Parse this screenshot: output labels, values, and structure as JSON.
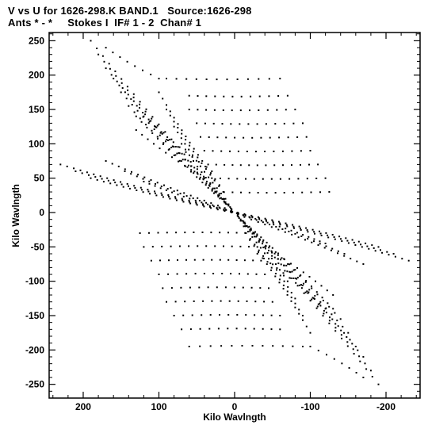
{
  "header": {
    "line1": "V vs U for 1626-298.K BAND.1   Source:1626-298",
    "line2": "Ants * - *     Stokes I  IF# 1 - 2  Chan# 1"
  },
  "chart_data": {
    "type": "scatter",
    "title": "V vs U for 1626-298.K BAND.1   Source:1626-298",
    "subtitle": "Ants * - *     Stokes I  IF# 1 - 2  Chan# 1",
    "xlabel": "Kilo Wavlngth",
    "ylabel": "Kilo Wavlngth",
    "xlim": [
      245,
      -245
    ],
    "ylim": [
      -270,
      262
    ],
    "x_inverted": true,
    "xticks": [
      200,
      100,
      0,
      -100,
      -200
    ],
    "xtick_labels": [
      "200",
      "100",
      "0",
      "-100",
      "-200"
    ],
    "yticks": [
      250,
      200,
      150,
      100,
      50,
      0,
      -50,
      -100,
      -150,
      -200,
      -250
    ],
    "ytick_labels": [
      "250",
      "200",
      "150",
      "100",
      "50",
      "0",
      "-50",
      "-100",
      "-150",
      "-200",
      "-250"
    ],
    "grid": false,
    "legend": "none",
    "marker_color": "#000000",
    "uv_tracks": {
      "description_note": "Each baseline track is a straight segment of uv samples; points mirrored (u,v)->(-u,-v).",
      "tracks": [
        {
          "start": [
            190,
            250
          ],
          "end": [
            15,
            20
          ],
          "n": 22
        },
        {
          "start": [
            180,
            230
          ],
          "end": [
            12,
            15
          ],
          "n": 22
        },
        {
          "start": [
            170,
            210
          ],
          "end": [
            10,
            12
          ],
          "n": 22
        },
        {
          "start": [
            160,
            195
          ],
          "end": [
            8,
            10
          ],
          "n": 20
        },
        {
          "start": [
            150,
            175
          ],
          "end": [
            6,
            8
          ],
          "n": 20
        },
        {
          "start": [
            140,
            155
          ],
          "end": [
            5,
            6
          ],
          "n": 18
        },
        {
          "start": [
            130,
            140
          ],
          "end": [
            4,
            5
          ],
          "n": 18
        },
        {
          "start": [
            230,
            70
          ],
          "end": [
            5,
            2
          ],
          "n": 26
        },
        {
          "start": [
            210,
            60
          ],
          "end": [
            5,
            1
          ],
          "n": 24
        },
        {
          "start": [
            190,
            50
          ],
          "end": [
            4,
            0
          ],
          "n": 22
        },
        {
          "start": [
            170,
            75
          ],
          "end": [
            4,
            3
          ],
          "n": 20
        },
        {
          "start": [
            145,
            60
          ],
          "end": [
            3,
            1
          ],
          "n": 18
        },
        {
          "start": [
            120,
            45
          ],
          "end": [
            3,
            1
          ],
          "n": 16
        },
        {
          "start": [
            170,
            240
          ],
          "end": [
            100,
            195
          ],
          "n": 8
        },
        {
          "start": [
            90,
            195
          ],
          "end": [
            -60,
            195
          ],
          "n": 12
        },
        {
          "start": [
            60,
            170
          ],
          "end": [
            -70,
            170
          ],
          "n": 12
        },
        {
          "start": [
            60,
            150
          ],
          "end": [
            -80,
            150
          ],
          "n": 13
        },
        {
          "start": [
            50,
            130
          ],
          "end": [
            -90,
            130
          ],
          "n": 13
        },
        {
          "start": [
            45,
            110
          ],
          "end": [
            -95,
            110
          ],
          "n": 13
        },
        {
          "start": [
            40,
            90
          ],
          "end": [
            -100,
            90
          ],
          "n": 13
        },
        {
          "start": [
            35,
            70
          ],
          "end": [
            -110,
            70
          ],
          "n": 14
        },
        {
          "start": [
            30,
            50
          ],
          "end": [
            -120,
            50
          ],
          "n": 14
        },
        {
          "start": [
            25,
            30
          ],
          "end": [
            -125,
            30
          ],
          "n": 14
        },
        {
          "start": [
            100,
            175
          ],
          "end": [
            20,
            40
          ],
          "n": 16
        },
        {
          "start": [
            90,
            150
          ],
          "end": [
            15,
            30
          ],
          "n": 15
        },
        {
          "start": [
            80,
            125
          ],
          "end": [
            12,
            20
          ],
          "n": 14
        },
        {
          "start": [
            70,
            100
          ],
          "end": [
            8,
            12
          ],
          "n": 12
        },
        {
          "start": [
            120,
            140
          ],
          "end": [
            30,
            60
          ],
          "n": 12
        },
        {
          "start": [
            130,
            120
          ],
          "end": [
            40,
            50
          ],
          "n": 12
        }
      ]
    }
  }
}
